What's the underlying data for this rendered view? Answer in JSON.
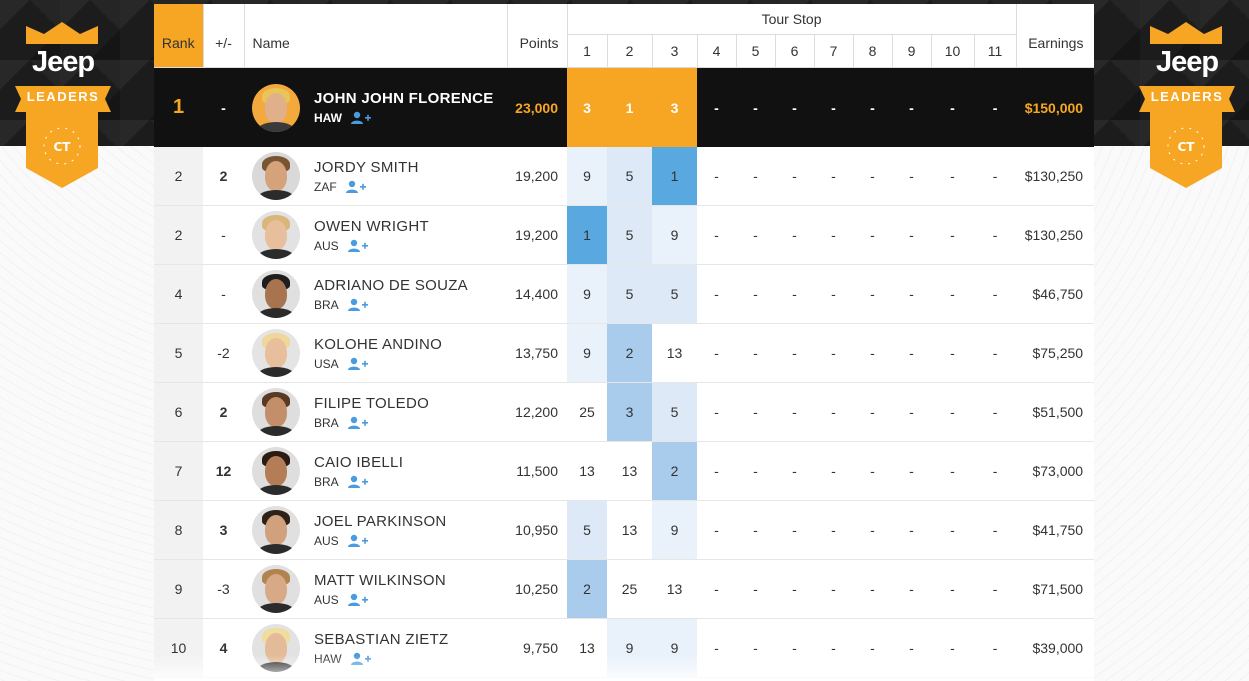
{
  "badges": {
    "brand": "Jeep",
    "ribbon": "LEADERS",
    "shield": "CT"
  },
  "colors": {
    "accent": "#f6a623",
    "positive": "#7ac142",
    "negative": "#d9362b",
    "highlight_best": "#5aa8e0"
  },
  "header": {
    "rank": "Rank",
    "change": "+/-",
    "name": "Name",
    "points": "Points",
    "tour_stop": "Tour Stop",
    "stops": [
      "1",
      "2",
      "3",
      "4",
      "5",
      "6",
      "7",
      "8",
      "9",
      "10",
      "11"
    ],
    "earnings": "Earnings"
  },
  "rows": [
    {
      "rank": "1",
      "change": "-",
      "name": "JOHN JOHN FLORENCE",
      "country": "HAW",
      "points": "23,000",
      "stops": [
        "3",
        "1",
        "3",
        "-",
        "-",
        "-",
        "-",
        "-",
        "-",
        "-",
        "-"
      ],
      "earnings": "$150,000"
    },
    {
      "rank": "2",
      "change": "2",
      "name": "JORDY SMITH",
      "country": "ZAF",
      "points": "19,200",
      "stops": [
        "9",
        "5",
        "1",
        "-",
        "-",
        "-",
        "-",
        "-",
        "-",
        "-",
        "-"
      ],
      "earnings": "$130,250"
    },
    {
      "rank": "2",
      "change": "-",
      "name": "OWEN WRIGHT",
      "country": "AUS",
      "points": "19,200",
      "stops": [
        "1",
        "5",
        "9",
        "-",
        "-",
        "-",
        "-",
        "-",
        "-",
        "-",
        "-"
      ],
      "earnings": "$130,250"
    },
    {
      "rank": "4",
      "change": "-",
      "name": "ADRIANO DE SOUZA",
      "country": "BRA",
      "points": "14,400",
      "stops": [
        "9",
        "5",
        "5",
        "-",
        "-",
        "-",
        "-",
        "-",
        "-",
        "-",
        "-"
      ],
      "earnings": "$46,750"
    },
    {
      "rank": "5",
      "change": "-2",
      "name": "KOLOHE ANDINO",
      "country": "USA",
      "points": "13,750",
      "stops": [
        "9",
        "2",
        "13",
        "-",
        "-",
        "-",
        "-",
        "-",
        "-",
        "-",
        "-"
      ],
      "earnings": "$75,250"
    },
    {
      "rank": "6",
      "change": "2",
      "name": "FILIPE TOLEDO",
      "country": "BRA",
      "points": "12,200",
      "stops": [
        "25",
        "3",
        "5",
        "-",
        "-",
        "-",
        "-",
        "-",
        "-",
        "-",
        "-"
      ],
      "earnings": "$51,500"
    },
    {
      "rank": "7",
      "change": "12",
      "name": "CAIO IBELLI",
      "country": "BRA",
      "points": "11,500",
      "stops": [
        "13",
        "13",
        "2",
        "-",
        "-",
        "-",
        "-",
        "-",
        "-",
        "-",
        "-"
      ],
      "earnings": "$73,000"
    },
    {
      "rank": "8",
      "change": "3",
      "name": "JOEL PARKINSON",
      "country": "AUS",
      "points": "10,950",
      "stops": [
        "5",
        "13",
        "9",
        "-",
        "-",
        "-",
        "-",
        "-",
        "-",
        "-",
        "-"
      ],
      "earnings": "$41,750"
    },
    {
      "rank": "9",
      "change": "-3",
      "name": "MATT WILKINSON",
      "country": "AUS",
      "points": "10,250",
      "stops": [
        "2",
        "25",
        "13",
        "-",
        "-",
        "-",
        "-",
        "-",
        "-",
        "-",
        "-"
      ],
      "earnings": "$71,500"
    },
    {
      "rank": "10",
      "change": "4",
      "name": "SEBASTIAN ZIETZ",
      "country": "HAW",
      "points": "9,750",
      "stops": [
        "13",
        "9",
        "9",
        "-",
        "-",
        "-",
        "-",
        "-",
        "-",
        "-",
        "-"
      ],
      "earnings": "$39,000"
    }
  ]
}
